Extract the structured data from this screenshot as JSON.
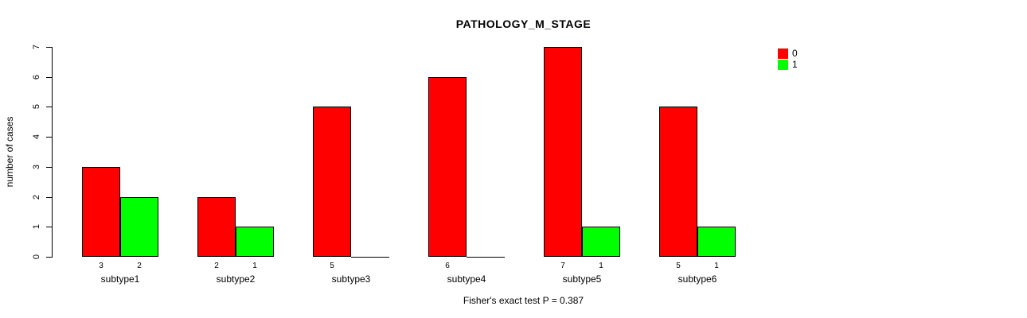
{
  "chart_data": {
    "type": "bar",
    "title": "PATHOLOGY_M_STAGE",
    "ylabel": "number of cases",
    "xlabel": "",
    "caption": "Fisher's exact test P = 0.387",
    "categories": [
      "subtype1",
      "subtype2",
      "subtype3",
      "subtype4",
      "subtype5",
      "subtype6"
    ],
    "series": [
      {
        "name": "0",
        "color": "#FF0000",
        "values": [
          3,
          2,
          5,
          6,
          7,
          5
        ]
      },
      {
        "name": "1",
        "color": "#00FF00",
        "values": [
          2,
          1,
          0,
          0,
          1,
          1
        ]
      }
    ],
    "ylim": [
      0,
      7
    ],
    "yticks": [
      "0",
      "1",
      "2",
      "3",
      "4",
      "5",
      "6",
      "7"
    ],
    "grid": false,
    "legend_position": "top-right",
    "bar_value_labels": "shown under each bar, hidden when value is 0"
  },
  "colors": {
    "background": "#FFFFFF",
    "axis": "#000000",
    "text": "#000000",
    "series0": "#FF0000",
    "series1": "#00FF00"
  }
}
